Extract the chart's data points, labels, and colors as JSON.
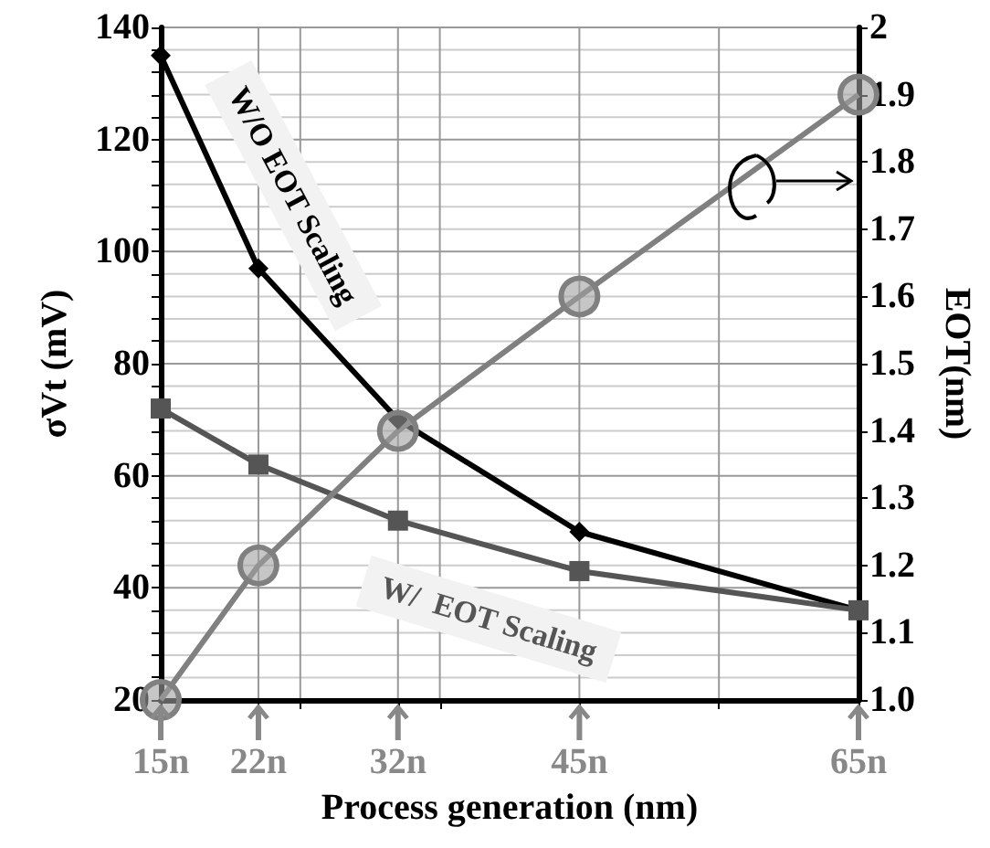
{
  "chart_data": {
    "type": "line",
    "xlabel": "Process generation (nm)",
    "ylabel": "σVt (mV)",
    "y2label": "EOT(nm)",
    "x": [
      15,
      22,
      32,
      45,
      65
    ],
    "xlim": [
      15,
      65
    ],
    "xticks": [
      {
        "value": 15,
        "label": "15n"
      },
      {
        "value": 22,
        "label": "22n"
      },
      {
        "value": 25,
        "label": null
      },
      {
        "value": 32,
        "label": "32n"
      },
      {
        "value": 35,
        "label": null
      },
      {
        "value": 45,
        "label": "45n"
      },
      {
        "value": 55,
        "label": null
      },
      {
        "value": 65,
        "label": "65n"
      }
    ],
    "ylim": [
      20,
      140
    ],
    "yticks": [
      20,
      {
        "value": 24,
        "label": null
      },
      {
        "value": 28,
        "label": null
      },
      {
        "value": 32,
        "label": null
      },
      {
        "value": 36,
        "label": null
      },
      40,
      {
        "value": 44,
        "label": null
      },
      {
        "value": 48,
        "label": null
      },
      {
        "value": 52,
        "label": null
      },
      {
        "value": 56,
        "label": null
      },
      60,
      {
        "value": 64,
        "label": null
      },
      {
        "value": 68,
        "label": null
      },
      {
        "value": 72,
        "label": null
      },
      {
        "value": 76,
        "label": null
      },
      80,
      {
        "value": 84,
        "label": null
      },
      {
        "value": 88,
        "label": null
      },
      {
        "value": 92,
        "label": null
      },
      {
        "value": 96,
        "label": null
      },
      100,
      {
        "value": 104,
        "label": null
      },
      {
        "value": 108,
        "label": null
      },
      {
        "value": 112,
        "label": null
      },
      {
        "value": 116,
        "label": null
      },
      120,
      {
        "value": 124,
        "label": null
      },
      {
        "value": 128,
        "label": null
      },
      {
        "value": 132,
        "label": null
      },
      {
        "value": 136,
        "label": null
      },
      140
    ],
    "y2lim": [
      1,
      2
    ],
    "y2ticks": [
      {
        "value": 1,
        "label": "1.0"
      },
      1.1,
      1.2,
      1.3,
      1.4,
      1.5,
      1.6,
      1.7,
      1.8,
      1.9,
      2
    ],
    "grid": true,
    "series": [
      {
        "name": "W/O EOT Scaling",
        "color": "#000000",
        "marker": "diamond",
        "values": [
          135,
          97,
          70,
          50,
          36
        ]
      },
      {
        "name": "W/  EOT Scaling",
        "color": "#555555",
        "marker": "square",
        "values": [
          72,
          62,
          52,
          43,
          36
        ]
      },
      {
        "color": "#808080",
        "marker": "circle",
        "axis": "y2",
        "values": [
          1.0,
          1.2,
          1.4,
          1.6,
          1.9
        ]
      }
    ]
  }
}
